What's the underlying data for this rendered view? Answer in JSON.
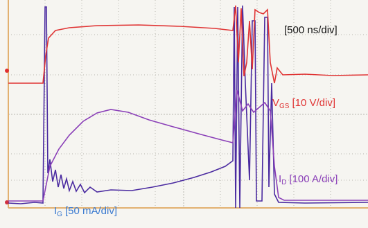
{
  "time_scale": "[500 ns/div]",
  "labels": [
    {
      "symbol": "V",
      "subscript": "GS",
      "scale": "[10 V/div]"
    },
    {
      "symbol": "I",
      "subscript": "D",
      "scale": "[100 A/div]"
    },
    {
      "symbol": "I",
      "subscript": "G",
      "scale": "[50 mA/div]"
    }
  ]
}
